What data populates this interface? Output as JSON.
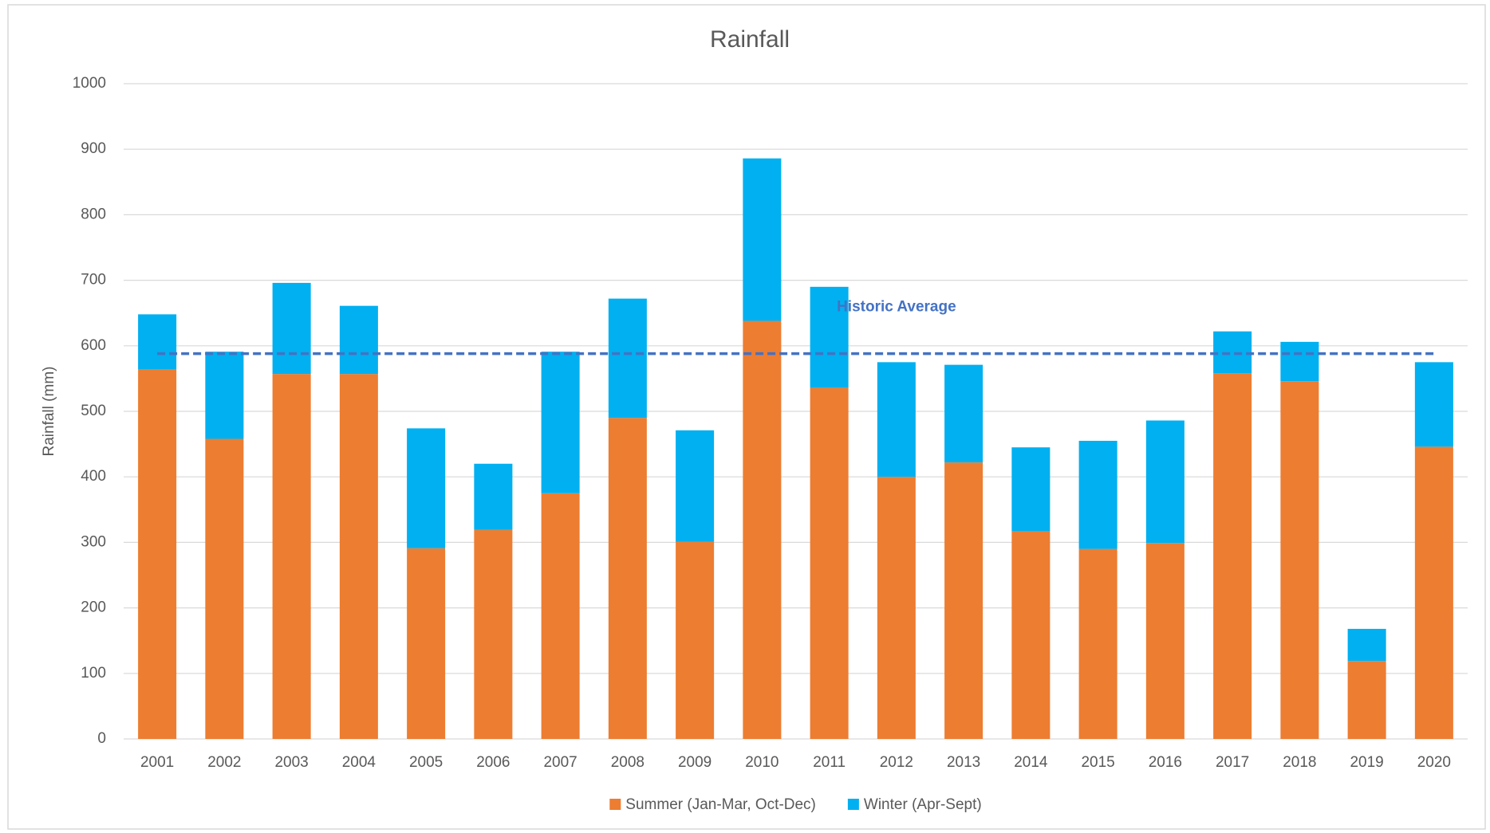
{
  "chart_data": {
    "type": "stacked_bar",
    "title": "Rainfall",
    "y_label": "Rainfall (mm)",
    "categories": [
      "2001",
      "2002",
      "2003",
      "2004",
      "2005",
      "2006",
      "2007",
      "2008",
      "2009",
      "2010",
      "2011",
      "2012",
      "2013",
      "2014",
      "2015",
      "2016",
      "2017",
      "2018",
      "2019",
      "2020"
    ],
    "series": [
      {
        "name": "Summer (Jan-Mar, Oct-Dec)",
        "color": "#ed7d31",
        "values": [
          564,
          458,
          557,
          557,
          291,
          319,
          375,
          490,
          301,
          638,
          536,
          400,
          422,
          317,
          290,
          299,
          558,
          546,
          119,
          446
        ]
      },
      {
        "name": "Winter (Apr-Sept)",
        "color": "#00b0f0",
        "values": [
          84,
          133,
          139,
          104,
          183,
          101,
          216,
          182,
          170,
          248,
          154,
          175,
          149,
          128,
          165,
          187,
          64,
          60,
          49,
          129
        ]
      }
    ],
    "ylim": [
      0,
      1000
    ],
    "yticks": [
      0,
      100,
      200,
      300,
      400,
      500,
      600,
      700,
      800,
      900,
      1000
    ],
    "grid": true,
    "reference_line": {
      "label": "Historic Average",
      "value": 588,
      "color": "#4472c4"
    },
    "legend": "bottom"
  }
}
